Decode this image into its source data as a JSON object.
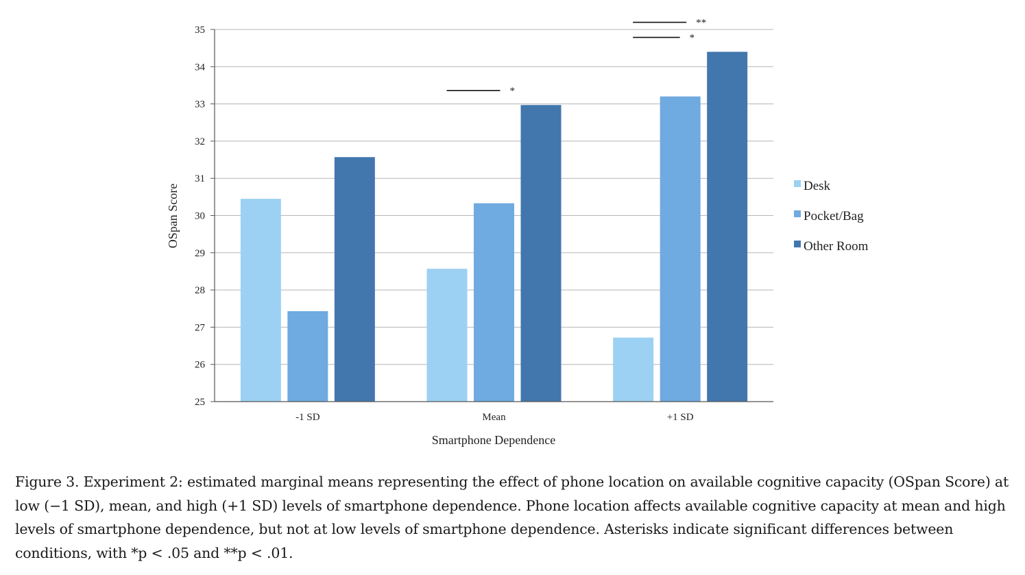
{
  "chart_data": {
    "type": "bar",
    "categories": [
      "-1 SD",
      "Mean",
      "+1 SD"
    ],
    "series": [
      {
        "name": "Desk",
        "color": "#9dd1f3",
        "values": [
          30.45,
          28.57,
          26.72
        ]
      },
      {
        "name": "Pocket/Bag",
        "color": "#6faae0",
        "values": [
          27.43,
          30.33,
          33.2
        ]
      },
      {
        "name": "Other Room",
        "color": "#4277ad",
        "values": [
          31.57,
          32.97,
          34.4
        ]
      }
    ],
    "xlabel": "Smartphone Dependence",
    "ylabel": "OSpan Score",
    "ylim": [
      25,
      35
    ],
    "yticks": [
      25,
      26,
      27,
      28,
      29,
      30,
      31,
      32,
      33,
      34,
      35
    ],
    "grid": true,
    "legend_position": "right",
    "significance": [
      {
        "category": "Mean",
        "from_series": "Desk",
        "to_series": "Other Room",
        "label": "*"
      },
      {
        "category": "+1 SD",
        "from_series": "Desk",
        "to_series": "Pocket/Bag",
        "label": "*"
      },
      {
        "category": "+1 SD",
        "from_series": "Desk",
        "to_series": "Other Room",
        "label": "**"
      }
    ]
  },
  "caption": {
    "text": "Figure 3. Experiment 2: estimated marginal means representing the effect of phone location on available cognitive capacity (OSpan Score) at low (−1 SD), mean, and high (+1 SD) levels of smartphone dependence. Phone location affects available cognitive capacity at mean and high levels of smartphone dependence, but not at low levels of smartphone dependence. Asterisks indicate significant differences between conditions, with *p < .05 and **p < .01."
  }
}
